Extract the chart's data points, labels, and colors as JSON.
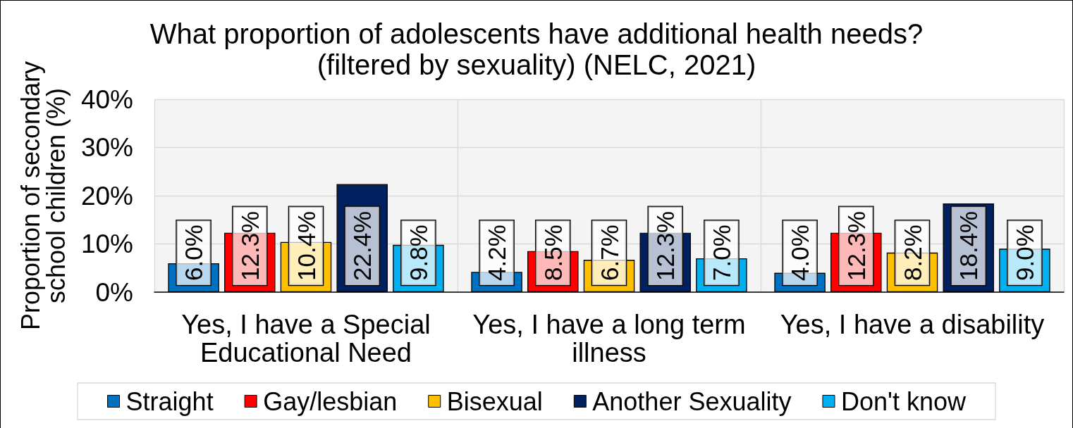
{
  "chart_data": {
    "type": "bar",
    "title": "What proportion of adolescents have additional health needs? (filtered by sexuality) (NELC, 2021)",
    "ylabel": "Proportion of secondary school children (%)",
    "categories": [
      "Yes, I have a Special Educational Need",
      "Yes, I have a long term illness",
      "Yes, I have a disability"
    ],
    "series": [
      {
        "name": "Straight",
        "color": "#0070c0",
        "values": [
          6.0,
          4.2,
          4.0
        ],
        "value_labels": [
          "6.0%",
          "4.2%",
          "4.0%"
        ]
      },
      {
        "name": "Gay/lesbian",
        "color": "#ff0000",
        "values": [
          12.3,
          8.5,
          12.3
        ],
        "value_labels": [
          "12.3%",
          "8.5%",
          "12.3%"
        ]
      },
      {
        "name": "Bisexual",
        "color": "#ffc000",
        "values": [
          10.4,
          6.7,
          8.2
        ],
        "value_labels": [
          "10.4%",
          "6.7%",
          "8.2%"
        ]
      },
      {
        "name": "Another Sexuality",
        "color": "#002060",
        "values": [
          22.4,
          12.3,
          18.4
        ],
        "value_labels": [
          "22.4%",
          "12.3%",
          "18.4%"
        ]
      },
      {
        "name": "Don't know",
        "color": "#00b0f0",
        "values": [
          9.8,
          7.0,
          9.0
        ],
        "value_labels": [
          "9.8%",
          "7.0%",
          "9.0%"
        ]
      }
    ],
    "ylim": [
      0,
      40
    ],
    "yticks": [
      {
        "value": 0,
        "label": "0%"
      },
      {
        "value": 10,
        "label": "10%"
      },
      {
        "value": 20,
        "label": "20%"
      },
      {
        "value": 30,
        "label": "30%"
      },
      {
        "value": 40,
        "label": "40%"
      }
    ],
    "grid": true,
    "legend": "bottom"
  }
}
